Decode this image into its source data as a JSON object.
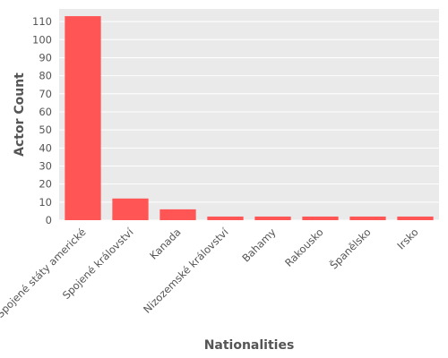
{
  "chart_data": {
    "type": "bar",
    "categories": [
      "Spojené státy americké",
      "Spojené království",
      "Kanada",
      "Nizozemské království",
      "Bahamy",
      "Rakousko",
      "Španělsko",
      "Irsko"
    ],
    "values": [
      113,
      12,
      6,
      2,
      2,
      2,
      2,
      2
    ],
    "xlabel": "Nationalities",
    "ylabel": "Actor Count",
    "ylim": [
      0,
      117
    ],
    "yticks": [
      0,
      10,
      20,
      30,
      40,
      50,
      60,
      70,
      80,
      90,
      100,
      110
    ],
    "grid": true,
    "colors": {
      "bar": "#ff5555",
      "plot_background": "#eaeaea",
      "grid": "#ffffff"
    }
  }
}
